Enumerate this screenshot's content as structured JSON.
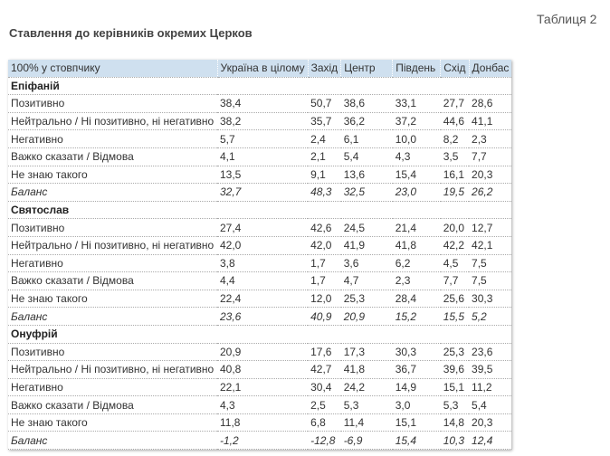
{
  "table_number": "Таблиця 2",
  "title": "Ставлення до керівників окремих Церков",
  "table": {
    "columns": [
      "100% у стовпчику",
      "Україна в цілому",
      "Захід",
      "Центр",
      "Південь",
      "Схід",
      "Донбас"
    ],
    "groups": [
      {
        "name": "Епіфаній",
        "rows": [
          {
            "label": "Позитивно",
            "values": [
              "38,4",
              "50,7",
              "38,6",
              "33,1",
              "27,7",
              "28,6"
            ]
          },
          {
            "label": "Нейтрально / Ні позитивно, ні негативно",
            "values": [
              "38,2",
              "35,7",
              "36,2",
              "37,2",
              "44,6",
              "41,1"
            ]
          },
          {
            "label": "Негативно",
            "values": [
              "5,7",
              "2,4",
              "6,1",
              "10,0",
              "8,2",
              "2,3"
            ]
          },
          {
            "label": "Важко сказати / Відмова",
            "values": [
              "4,1",
              "2,1",
              "5,4",
              "4,3",
              "3,5",
              "7,7"
            ]
          },
          {
            "label": "Не знаю такого",
            "values": [
              "13,5",
              "9,1",
              "13,6",
              "15,4",
              "16,1",
              "20,3"
            ]
          },
          {
            "label": "Баланс",
            "values": [
              "32,7",
              "48,3",
              "32,5",
              "23,0",
              "19,5",
              "26,2"
            ]
          }
        ]
      },
      {
        "name": "Святослав",
        "rows": [
          {
            "label": "Позитивно",
            "values": [
              "27,4",
              "42,6",
              "24,5",
              "21,4",
              "20,0",
              "12,7"
            ]
          },
          {
            "label": "Нейтрально / Ні позитивно, ні негативно",
            "values": [
              "42,0",
              "42,0",
              "41,9",
              "41,8",
              "42,2",
              "42,1"
            ]
          },
          {
            "label": "Негативно",
            "values": [
              "3,8",
              "1,7",
              "3,6",
              "6,2",
              "4,5",
              "7,5"
            ]
          },
          {
            "label": "Важко сказати / Відмова",
            "values": [
              "4,4",
              "1,7",
              "4,7",
              "2,3",
              "7,7",
              "7,5"
            ]
          },
          {
            "label": "Не знаю такого",
            "values": [
              "22,4",
              "12,0",
              "25,3",
              "28,4",
              "25,6",
              "30,3"
            ]
          },
          {
            "label": "Баланс",
            "values": [
              "23,6",
              "40,9",
              "20,9",
              "15,2",
              "15,5",
              "5,2"
            ]
          }
        ]
      },
      {
        "name": "Онуфрій",
        "rows": [
          {
            "label": "Позитивно",
            "values": [
              "20,9",
              "17,6",
              "17,3",
              "30,3",
              "25,3",
              "23,6"
            ]
          },
          {
            "label": "Нейтрально / Ні позитивно, ні негативно",
            "values": [
              "40,8",
              "42,7",
              "41,8",
              "36,7",
              "39,6",
              "39,5"
            ]
          },
          {
            "label": "Негативно",
            "values": [
              "22,1",
              "30,4",
              "24,2",
              "14,9",
              "15,1",
              "11,2"
            ]
          },
          {
            "label": "Важко сказати / Відмова",
            "values": [
              "4,3",
              "2,5",
              "5,3",
              "3,0",
              "5,3",
              "5,4"
            ]
          },
          {
            "label": "Не знаю такого",
            "values": [
              "11,8",
              "6,8",
              "11,4",
              "15,1",
              "14,8",
              "20,3"
            ]
          },
          {
            "label": "Баланс",
            "values": [
              "-1,2",
              "-12,8",
              "-6,9",
              "15,4",
              "10,3",
              "12,4"
            ]
          }
        ]
      }
    ]
  },
  "colors": {
    "header_bg": "#cfe0ef",
    "row_divider": "#aaaaaa"
  }
}
